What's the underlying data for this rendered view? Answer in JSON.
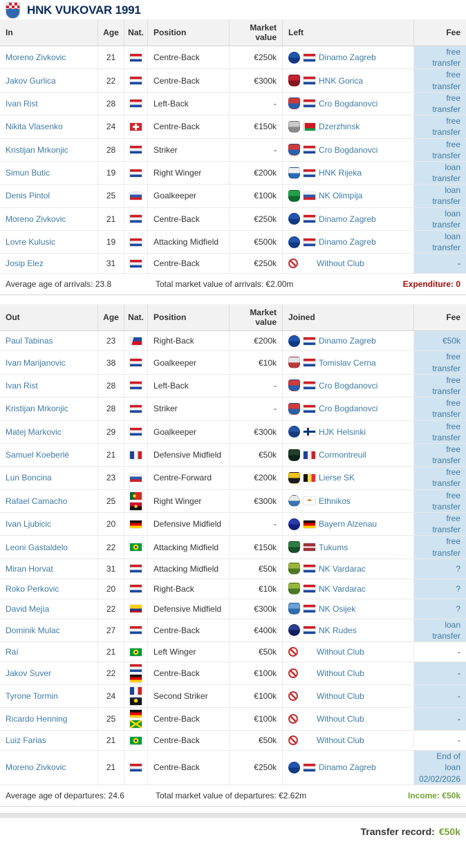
{
  "page": {
    "title": "HNK VUKOVAR 1991"
  },
  "colors": {
    "link": "#3f7ca4",
    "fee_bg": "#d0e3f0",
    "expenditure": "#a00e0e",
    "income": "#74a333",
    "title": "#0a2a5c"
  },
  "in_table": {
    "headers": {
      "player": "In",
      "age": "Age",
      "nat": "Nat.",
      "position": "Position",
      "market": "Market value",
      "club": "Left",
      "fee": "Fee"
    },
    "rows": [
      {
        "name": "Moreno Zivkovic",
        "age": "21",
        "nats": [
          "Croatia"
        ],
        "position": "Centre-Back",
        "value": "€250k",
        "club": "Dinamo Zagreb",
        "club_country": "Croatia",
        "fee": "free transfer",
        "fee_bg": true
      },
      {
        "name": "Jakov Gurlica",
        "age": "22",
        "nats": [
          "Croatia"
        ],
        "position": "Centre-Back",
        "value": "€300k",
        "club": "HNK Gorica",
        "club_country": "Croatia",
        "fee": "free transfer",
        "fee_bg": true
      },
      {
        "name": "Ivan Rist",
        "age": "28",
        "nats": [
          "Croatia"
        ],
        "position": "Left-Back",
        "value": "-",
        "club": "Cro Bogdanovci",
        "club_country": "Croatia",
        "fee": "free transfer",
        "fee_bg": true
      },
      {
        "name": "Nikita Vlasenko",
        "age": "24",
        "nats": [
          "Switzerland"
        ],
        "position": "Centre-Back",
        "value": "€150k",
        "club": "Dzerzhinsk",
        "club_country": "Belarus",
        "fee": "free transfer",
        "fee_bg": true
      },
      {
        "name": "Kristijan Mrkonjic",
        "age": "28",
        "nats": [
          "Croatia"
        ],
        "position": "Striker",
        "value": "-",
        "club": "Cro Bogdanovci",
        "club_country": "Croatia",
        "fee": "free transfer",
        "fee_bg": true
      },
      {
        "name": "Simun Butic",
        "age": "19",
        "nats": [
          "Croatia"
        ],
        "position": "Right Winger",
        "value": "€200k",
        "club": "HNK Rijeka",
        "club_country": "Croatia",
        "fee": "loan transfer",
        "fee_bg": true
      },
      {
        "name": "Denis Pintol",
        "age": "25",
        "nats": [
          "Slovenia"
        ],
        "position": "Goalkeeper",
        "value": "€100k",
        "club": "NK Olimpija",
        "club_country": "Slovenia",
        "fee": "loan transfer",
        "fee_bg": true
      },
      {
        "name": "Moreno Zivkovic",
        "age": "21",
        "nats": [
          "Croatia"
        ],
        "position": "Centre-Back",
        "value": "€250k",
        "club": "Dinamo Zagreb",
        "club_country": "Croatia",
        "fee": "loan transfer",
        "fee_bg": true
      },
      {
        "name": "Lovre Kulusic",
        "age": "19",
        "nats": [
          "Croatia"
        ],
        "position": "Attacking Midfield",
        "value": "€500k",
        "club": "Dinamo Zagreb",
        "club_country": "Croatia",
        "fee": "loan transfer",
        "fee_bg": true
      },
      {
        "name": "Josip Elez",
        "age": "31",
        "nats": [
          "Croatia"
        ],
        "position": "Centre-Back",
        "value": "€250k",
        "club": "Without Club",
        "club_country": null,
        "fee": "-",
        "fee_bg": true
      }
    ],
    "summary": {
      "age": "Average age of arrivals: 23.8",
      "value": "Total market value of arrivals: €2.00m",
      "balance": "Expenditure: 0",
      "balance_type": "expenditure"
    }
  },
  "out_table": {
    "headers": {
      "player": "Out",
      "age": "Age",
      "nat": "Nat.",
      "position": "Position",
      "market": "Market value",
      "club": "Joined",
      "fee": "Fee"
    },
    "rows": [
      {
        "name": "Paul Tabinas",
        "age": "23",
        "nats": [
          "Philippines"
        ],
        "position": "Right-Back",
        "value": "€200k",
        "club": "Dinamo Zagreb",
        "club_country": "Croatia",
        "fee": "€50k",
        "fee_bg": true
      },
      {
        "name": "Ivan Marijanovic",
        "age": "38",
        "nats": [
          "Croatia"
        ],
        "position": "Goalkeeper",
        "value": "€10k",
        "club": "Tomislav Cerna",
        "club_country": "Croatia",
        "fee": "free transfer",
        "fee_bg": true
      },
      {
        "name": "Ivan Rist",
        "age": "28",
        "nats": [
          "Croatia"
        ],
        "position": "Left-Back",
        "value": "-",
        "club": "Cro Bogdanovci",
        "club_country": "Croatia",
        "fee": "free transfer",
        "fee_bg": true
      },
      {
        "name": "Kristijan Mrkonjic",
        "age": "28",
        "nats": [
          "Croatia"
        ],
        "position": "Striker",
        "value": "-",
        "club": "Cro Bogdanovci",
        "club_country": "Croatia",
        "fee": "free transfer",
        "fee_bg": true
      },
      {
        "name": "Matej Markovic",
        "age": "29",
        "nats": [
          "Croatia"
        ],
        "position": "Goalkeeper",
        "value": "€300k",
        "club": "HJK Helsinki",
        "club_country": "Finland",
        "fee": "free transfer",
        "fee_bg": true
      },
      {
        "name": "Samuel Koeberlé",
        "age": "21",
        "nats": [
          "France"
        ],
        "position": "Defensive Midfield",
        "value": "€50k",
        "club": "Cormontreuil",
        "club_country": "France",
        "fee": "free transfer",
        "fee_bg": true
      },
      {
        "name": "Lun Boncina",
        "age": "23",
        "nats": [
          "Slovenia"
        ],
        "position": "Centre-Forward",
        "value": "€200k",
        "club": "Lierse SK",
        "club_country": "Belgium",
        "fee": "free transfer",
        "fee_bg": true
      },
      {
        "name": "Rafael Camacho",
        "age": "25",
        "nats": [
          "Portugal",
          "Angola"
        ],
        "position": "Right Winger",
        "value": "€300k",
        "club": "Ethnikos",
        "club_country": "Cyprus",
        "fee": "free transfer",
        "fee_bg": true
      },
      {
        "name": "Ivan Ljubicic",
        "age": "20",
        "nats": [
          "Germany"
        ],
        "position": "Defensive Midfield",
        "value": "-",
        "club": "Bayern Alzenau",
        "club_country": "Germany",
        "fee": "free transfer",
        "fee_bg": true
      },
      {
        "name": "Leoni Gastaldelo",
        "age": "22",
        "nats": [
          "Brazil"
        ],
        "position": "Attacking Midfield",
        "value": "€150k",
        "club": "Tukums",
        "club_country": "Latvia",
        "fee": "free transfer",
        "fee_bg": true
      },
      {
        "name": "Miran Horvat",
        "age": "31",
        "nats": [
          "Croatia"
        ],
        "position": "Attacking Midfield",
        "value": "€50k",
        "club": "NK Vardarac",
        "club_country": "Croatia",
        "fee": "?",
        "fee_bg": true
      },
      {
        "name": "Roko Perkovic",
        "age": "20",
        "nats": [
          "Croatia"
        ],
        "position": "Right-Back",
        "value": "€10k",
        "club": "NK Vardarac",
        "club_country": "Croatia",
        "fee": "?",
        "fee_bg": true
      },
      {
        "name": "David Mejía",
        "age": "22",
        "nats": [
          "Colombia"
        ],
        "position": "Defensive Midfield",
        "value": "€300k",
        "club": "NK Osijek",
        "club_country": "Croatia",
        "fee": "?",
        "fee_bg": true
      },
      {
        "name": "Dominik Mulac",
        "age": "27",
        "nats": [
          "Croatia"
        ],
        "position": "Centre-Back",
        "value": "€400k",
        "club": "NK Rudes",
        "club_country": "Croatia",
        "fee": "loan transfer",
        "fee_bg": true
      },
      {
        "name": "Raí",
        "age": "21",
        "nats": [
          "Brazil"
        ],
        "position": "Left Winger",
        "value": "€50k",
        "club": "Without Club",
        "club_country": null,
        "fee": "-",
        "fee_bg": false
      },
      {
        "name": "Jakov Suver",
        "age": "22",
        "nats": [
          "Croatia",
          "Germany"
        ],
        "position": "Centre-Back",
        "value": "€100k",
        "club": "Without Club",
        "club_country": null,
        "fee": "-",
        "fee_bg": true
      },
      {
        "name": "Tyrone Tormin",
        "age": "24",
        "nats": [
          "France",
          "Guadeloupe"
        ],
        "position": "Second Striker",
        "value": "€100k",
        "club": "Without Club",
        "club_country": null,
        "fee": "-",
        "fee_bg": true
      },
      {
        "name": "Ricardo Henning",
        "age": "25",
        "nats": [
          "Germany",
          "Jamaica"
        ],
        "position": "Centre-Back",
        "value": "€100k",
        "club": "Without Club",
        "club_country": null,
        "fee": "-",
        "fee_bg": true
      },
      {
        "name": "Luiz Farias",
        "age": "21",
        "nats": [
          "Brazil"
        ],
        "position": "Centre-Back",
        "value": "€50k",
        "club": "Without Club",
        "club_country": null,
        "fee": "-",
        "fee_bg": false
      },
      {
        "name": "Moreno Zivkovic",
        "age": "21",
        "nats": [
          "Croatia"
        ],
        "position": "Centre-Back",
        "value": "€250k",
        "club": "Dinamo Zagreb",
        "club_country": "Croatia",
        "fee": "End of loan\n02/02/2026",
        "fee_bg": true
      }
    ],
    "summary": {
      "age": "Average age of departures: 24.6",
      "value": "Total market value of departures: €2.62m",
      "balance": "Income: €50k",
      "balance_type": "income"
    }
  },
  "footer": {
    "label": "Transfer record:",
    "value": "€50k"
  },
  "club_badges": {
    "Dinamo Zagreb": {
      "shape": "circle",
      "c1": "#2155ae",
      "c2": "#123a86"
    },
    "HNK Gorica": {
      "shape": "shield",
      "c1": "#c42230",
      "c2": "#871420"
    },
    "Cro Bogdanovci": {
      "shape": "shield",
      "c1": "#cf3a3a",
      "c2": "#2b5fae"
    },
    "Dzerzhinsk": {
      "shape": "shield",
      "c1": "#c9c9c9",
      "c2": "#8a8a8a"
    },
    "HNK Rijeka": {
      "shape": "shield",
      "c1": "#f0f0f0",
      "c2": "#2a6ab4"
    },
    "NK Olimpija": {
      "shape": "shield",
      "c1": "#24a04a",
      "c2": "#0f6b2d"
    },
    "Tomislav Cerna": {
      "shape": "shield",
      "c1": "#e4e4e4",
      "c2": "#bb3a3a"
    },
    "HJK Helsinki": {
      "shape": "circle",
      "c1": "#2457a8",
      "c2": "#163c80"
    },
    "Cormontreuil": {
      "shape": "shield",
      "c1": "#22412e",
      "c2": "#0f2418"
    },
    "Lierse SK": {
      "shape": "shield",
      "c1": "#f0c419",
      "c2": "#1c1c1c"
    },
    "Ethnikos": {
      "shape": "circle",
      "c1": "#e8e8e8",
      "c2": "#3a74b4"
    },
    "Bayern Alzenau": {
      "shape": "circle",
      "c1": "#2b3cae",
      "c2": "#141f7c"
    },
    "Tukums": {
      "shape": "shield",
      "c1": "#2e7d44",
      "c2": "#14502a"
    },
    "NK Vardarac": {
      "shape": "shield",
      "c1": "#9ab53c",
      "c2": "#4c7a22"
    },
    "NK Osijek": {
      "shape": "shield",
      "c1": "#6ba2d4",
      "c2": "#2d6cb2"
    },
    "NK Rudes": {
      "shape": "circle",
      "c1": "#2b3f8f",
      "c2": "#121f5e"
    },
    "Without Club": {
      "shape": "none",
      "c1": "#ffffff",
      "c2": "#c23434"
    }
  }
}
